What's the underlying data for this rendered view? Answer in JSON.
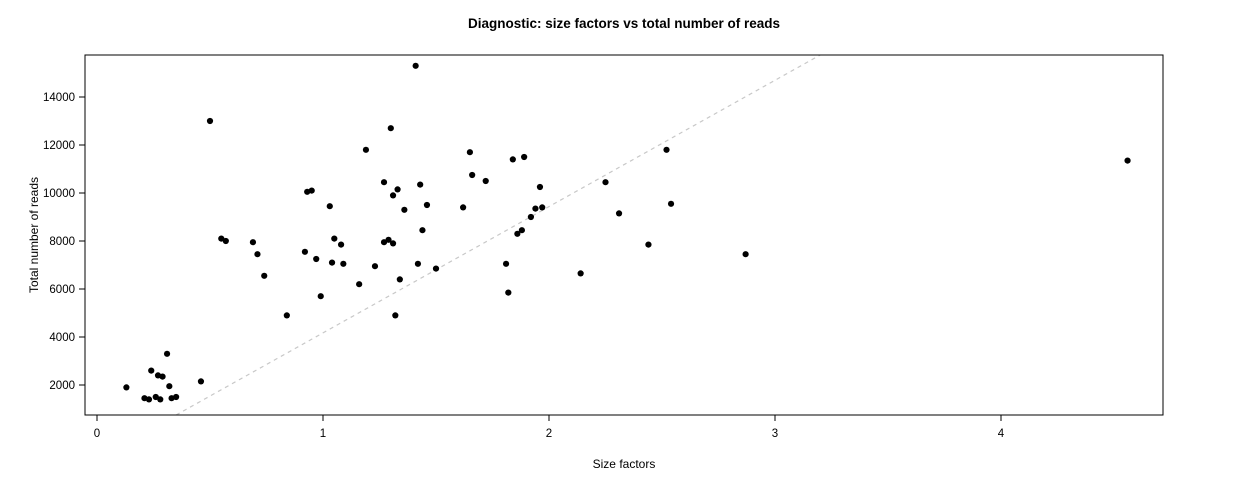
{
  "chart_data": {
    "type": "scatter",
    "title": "Diagnostic: size factors vs total number of reads",
    "xlabel": "Size factors",
    "ylabel": "Total number of reads",
    "xlim": [
      -0.05,
      4.72
    ],
    "ylim": [
      750,
      15750
    ],
    "grid": false,
    "legend_position": "none",
    "x_ticks": [
      {
        "value": 0,
        "label": "0"
      },
      {
        "value": 1,
        "label": "1"
      },
      {
        "value": 2,
        "label": "2"
      },
      {
        "value": 3,
        "label": "3"
      },
      {
        "value": 4,
        "label": "4"
      }
    ],
    "y_ticks": [
      {
        "value": 2000,
        "label": "2000"
      },
      {
        "value": 4000,
        "label": "4000"
      },
      {
        "value": 6000,
        "label": "6000"
      },
      {
        "value": 8000,
        "label": "8000"
      },
      {
        "value": 10000,
        "label": "10000"
      },
      {
        "value": 12000,
        "label": "12000"
      },
      {
        "value": 14000,
        "label": "14000"
      }
    ],
    "ref_line": {
      "slope": 5263,
      "intercept": -1092,
      "style": "dashed"
    },
    "colors": {
      "point": "#000000",
      "ref_line": "#c8c8c8",
      "border": "#000000"
    },
    "points": [
      [
        0.13,
        1900
      ],
      [
        0.21,
        1450
      ],
      [
        0.23,
        1400
      ],
      [
        0.26,
        1500
      ],
      [
        0.24,
        2600
      ],
      [
        0.27,
        2400
      ],
      [
        0.28,
        1400
      ],
      [
        0.29,
        2350
      ],
      [
        0.31,
        3300
      ],
      [
        0.32,
        1950
      ],
      [
        0.33,
        1450
      ],
      [
        0.35,
        1500
      ],
      [
        0.46,
        2150
      ],
      [
        0.5,
        13000
      ],
      [
        0.55,
        8100
      ],
      [
        0.57,
        8000
      ],
      [
        0.69,
        7950
      ],
      [
        0.71,
        7450
      ],
      [
        0.74,
        6550
      ],
      [
        0.84,
        4900
      ],
      [
        0.92,
        7550
      ],
      [
        0.93,
        10050
      ],
      [
        0.95,
        10100
      ],
      [
        0.97,
        7250
      ],
      [
        0.99,
        5700
      ],
      [
        1.03,
        9450
      ],
      [
        1.04,
        7100
      ],
      [
        1.05,
        8100
      ],
      [
        1.08,
        7850
      ],
      [
        1.09,
        7050
      ],
      [
        1.16,
        6200
      ],
      [
        1.19,
        11800
      ],
      [
        1.23,
        6950
      ],
      [
        1.27,
        10450
      ],
      [
        1.27,
        7950
      ],
      [
        1.29,
        8050
      ],
      [
        1.3,
        12700
      ],
      [
        1.31,
        9900
      ],
      [
        1.31,
        7900
      ],
      [
        1.32,
        4900
      ],
      [
        1.33,
        10150
      ],
      [
        1.34,
        6400
      ],
      [
        1.36,
        9300
      ],
      [
        1.41,
        15300
      ],
      [
        1.42,
        7050
      ],
      [
        1.43,
        10350
      ],
      [
        1.44,
        8450
      ],
      [
        1.46,
        9500
      ],
      [
        1.5,
        6850
      ],
      [
        1.62,
        9400
      ],
      [
        1.65,
        11700
      ],
      [
        1.66,
        10750
      ],
      [
        1.72,
        10500
      ],
      [
        1.81,
        7050
      ],
      [
        1.82,
        5850
      ],
      [
        1.84,
        11400
      ],
      [
        1.86,
        8300
      ],
      [
        1.88,
        8450
      ],
      [
        1.89,
        11500
      ],
      [
        1.92,
        9000
      ],
      [
        1.94,
        9350
      ],
      [
        1.96,
        10250
      ],
      [
        1.97,
        9400
      ],
      [
        2.14,
        6650
      ],
      [
        2.25,
        10450
      ],
      [
        2.31,
        9150
      ],
      [
        2.44,
        7850
      ],
      [
        2.52,
        11800
      ],
      [
        2.54,
        9550
      ],
      [
        2.87,
        7450
      ],
      [
        4.56,
        11350
      ]
    ]
  }
}
